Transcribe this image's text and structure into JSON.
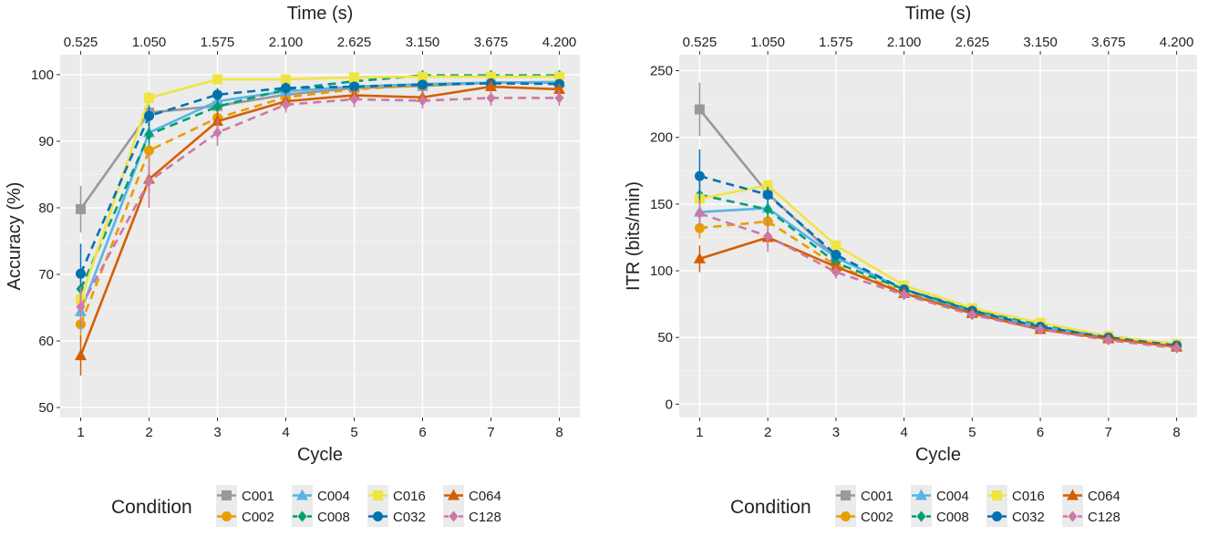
{
  "chart_data": [
    {
      "type": "line",
      "title": "",
      "xlabel": "Cycle",
      "ylabel": "Accuracy (%)",
      "secondary_xlabel": "Time (s)",
      "x": [
        1,
        2,
        3,
        4,
        5,
        6,
        7,
        8
      ],
      "x_ticks": [
        "1",
        "2",
        "3",
        "4",
        "5",
        "6",
        "7",
        "8"
      ],
      "secondary_x_ticks": [
        "0.525",
        "1.050",
        "1.575",
        "2.100",
        "2.625",
        "3.150",
        "3.675",
        "4.200"
      ],
      "y_ticks": [
        "50",
        "60",
        "70",
        "80",
        "90",
        "100"
      ],
      "y_tick_values": [
        50,
        60,
        70,
        80,
        90,
        100
      ],
      "ylim": [
        48.5,
        103
      ],
      "grid": true,
      "series": [
        {
          "name": "C001",
          "values": [
            79.8,
            94.3,
            95.3,
            97.0,
            98.0,
            98.3,
            98.8,
            98.8
          ],
          "err": [
            3.5,
            1.2,
            1.0,
            0.8,
            0.7,
            0.7,
            0.6,
            0.6
          ]
        },
        {
          "name": "C002",
          "values": [
            62.5,
            88.6,
            93.5,
            96.6,
            97.8,
            98.4,
            98.8,
            98.9
          ],
          "err": [
            2.8,
            1.8,
            1.2,
            0.9,
            0.8,
            0.7,
            0.6,
            0.6
          ]
        },
        {
          "name": "C004",
          "values": [
            64.4,
            91.3,
            96.0,
            97.5,
            98.2,
            98.6,
            98.8,
            98.9
          ],
          "err": [
            3.0,
            1.6,
            1.0,
            0.8,
            0.7,
            0.7,
            0.6,
            0.6
          ]
        },
        {
          "name": "C008",
          "values": [
            67.8,
            91.0,
            95.2,
            97.8,
            99.0,
            99.9,
            99.9,
            99.9
          ],
          "err": [
            3.0,
            1.6,
            1.0,
            0.7,
            0.5,
            0.3,
            0.3,
            0.3
          ]
        },
        {
          "name": "C016",
          "values": [
            66.2,
            96.5,
            99.3,
            99.3,
            99.6,
            99.7,
            99.7,
            99.7
          ],
          "err": [
            3.2,
            1.0,
            0.5,
            0.5,
            0.4,
            0.4,
            0.4,
            0.4
          ]
        },
        {
          "name": "C032",
          "values": [
            70.1,
            93.8,
            97.0,
            98.0,
            98.2,
            98.5,
            98.7,
            98.6
          ],
          "err": [
            4.5,
            1.5,
            1.0,
            0.8,
            0.7,
            0.7,
            0.6,
            0.6
          ]
        },
        {
          "name": "C064",
          "values": [
            57.8,
            84.3,
            93.0,
            96.0,
            96.9,
            96.6,
            98.2,
            97.8
          ],
          "err": [
            3.0,
            2.0,
            1.5,
            1.0,
            0.9,
            1.0,
            0.8,
            0.8
          ]
        },
        {
          "name": "C128",
          "values": [
            65.1,
            84.0,
            91.3,
            95.5,
            96.3,
            96.1,
            96.5,
            96.5
          ],
          "err": [
            3.0,
            4.0,
            2.0,
            1.2,
            1.2,
            1.2,
            1.2,
            1.2
          ]
        }
      ]
    },
    {
      "type": "line",
      "title": "",
      "xlabel": "Cycle",
      "ylabel": "ITR (bits/min)",
      "secondary_xlabel": "Time (s)",
      "x": [
        1,
        2,
        3,
        4,
        5,
        6,
        7,
        8
      ],
      "x_ticks": [
        "1",
        "2",
        "3",
        "4",
        "5",
        "6",
        "7",
        "8"
      ],
      "secondary_x_ticks": [
        "0.525",
        "1.050",
        "1.575",
        "2.100",
        "2.625",
        "3.150",
        "3.675",
        "4.200"
      ],
      "y_ticks": [
        "0",
        "50",
        "100",
        "150",
        "200",
        "250"
      ],
      "y_tick_values": [
        0,
        50,
        100,
        150,
        200,
        250
      ],
      "ylim": [
        -10,
        262
      ],
      "grid": true,
      "series": [
        {
          "name": "C001",
          "values": [
            221,
            158,
            110,
            86,
            70,
            58,
            50,
            43
          ],
          "err": [
            20,
            5,
            3,
            2,
            2,
            1.5,
            1.5,
            1.5
          ]
        },
        {
          "name": "C002",
          "values": [
            132,
            137,
            104,
            84,
            69,
            58,
            50,
            43
          ],
          "err": [
            8,
            6,
            3,
            2,
            2,
            1.5,
            1.5,
            1.5
          ]
        },
        {
          "name": "C004",
          "values": [
            144,
            147,
            110,
            86,
            69,
            58,
            50,
            43
          ],
          "err": [
            8,
            6,
            3,
            2,
            2,
            1.5,
            1.5,
            1.5
          ]
        },
        {
          "name": "C008",
          "values": [
            157,
            146,
            106,
            86,
            71,
            60,
            51,
            45
          ],
          "err": [
            10,
            6,
            3,
            2,
            2,
            1.5,
            1.5,
            1.5
          ]
        },
        {
          "name": "C016",
          "values": [
            154,
            164,
            119,
            89,
            72,
            61,
            51,
            45
          ],
          "err": [
            10,
            4,
            3,
            2,
            2,
            1.5,
            1.5,
            1.5
          ]
        },
        {
          "name": "C032",
          "values": [
            171,
            157,
            112,
            86,
            70,
            58,
            50,
            44
          ],
          "err": [
            20,
            6,
            3,
            2,
            2,
            1.5,
            1.5,
            1.5
          ]
        },
        {
          "name": "C064",
          "values": [
            109,
            125,
            103,
            83,
            68,
            56,
            49,
            43
          ],
          "err": [
            10,
            7,
            4,
            2,
            2,
            1.5,
            1.5,
            1.5
          ]
        },
        {
          "name": "C128",
          "values": [
            143,
            126,
            99,
            82,
            67,
            56,
            48,
            42
          ],
          "err": [
            10,
            12,
            5,
            3,
            2,
            1.5,
            1.5,
            1.5
          ]
        }
      ]
    }
  ],
  "legend": {
    "title": "Condition",
    "items": [
      {
        "name": "C001",
        "color": "#999999",
        "marker": "square",
        "dashed": false
      },
      {
        "name": "C002",
        "color": "#E69F00",
        "marker": "circle",
        "dashed": true
      },
      {
        "name": "C004",
        "color": "#56B4E9",
        "marker": "triangle",
        "dashed": false
      },
      {
        "name": "C008",
        "color": "#009E73",
        "marker": "diamond",
        "dashed": true
      },
      {
        "name": "C016",
        "color": "#F0E442",
        "marker": "square",
        "dashed": false
      },
      {
        "name": "C032",
        "color": "#0072B2",
        "marker": "circle",
        "dashed": true
      },
      {
        "name": "C064",
        "color": "#D55E00",
        "marker": "triangle",
        "dashed": false
      },
      {
        "name": "C128",
        "color": "#CC79A7",
        "marker": "diamond",
        "dashed": true
      }
    ]
  }
}
